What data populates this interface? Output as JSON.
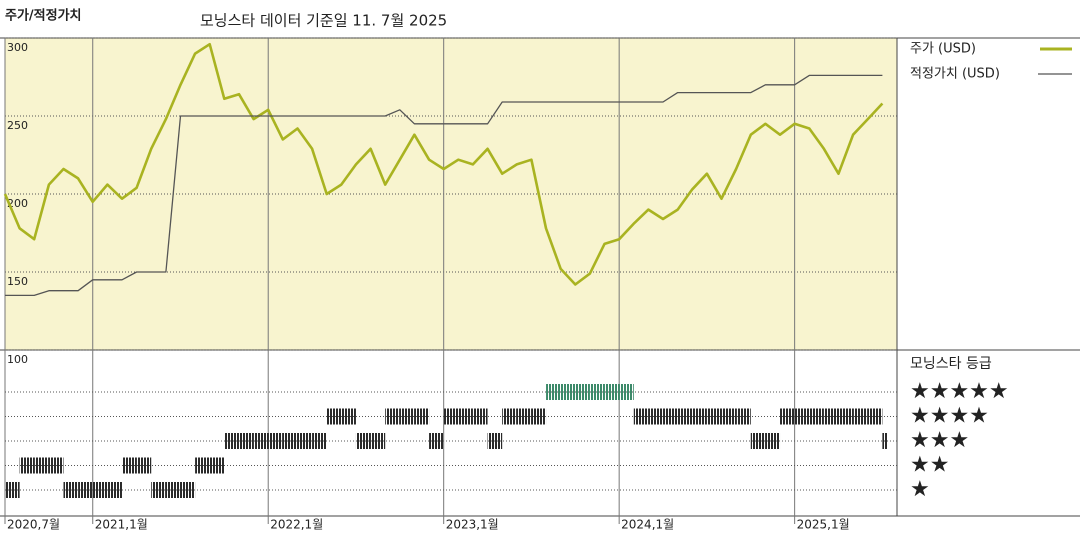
{
  "chart_data": {
    "type": "line",
    "title": "주가/적정가치",
    "subtitle": "모닝스타 데이터 기준일 11. 7월 2025",
    "x": [
      "2020-07",
      "2020-08",
      "2020-09",
      "2020-10",
      "2020-11",
      "2020-12",
      "2021-01",
      "2021-02",
      "2021-03",
      "2021-04",
      "2021-05",
      "2021-06",
      "2021-07",
      "2021-08",
      "2021-09",
      "2021-10",
      "2021-11",
      "2021-12",
      "2022-01",
      "2022-02",
      "2022-03",
      "2022-04",
      "2022-05",
      "2022-06",
      "2022-07",
      "2022-08",
      "2022-09",
      "2022-10",
      "2022-11",
      "2022-12",
      "2023-01",
      "2023-02",
      "2023-03",
      "2023-04",
      "2023-05",
      "2023-06",
      "2023-07",
      "2023-08",
      "2023-09",
      "2023-10",
      "2023-11",
      "2023-12",
      "2024-01",
      "2024-02",
      "2024-03",
      "2024-04",
      "2024-05",
      "2024-06",
      "2024-07",
      "2024-08",
      "2024-09",
      "2024-10",
      "2024-11",
      "2024-12",
      "2025-01",
      "2025-02",
      "2025-03",
      "2025-04",
      "2025-05",
      "2025-06",
      "2025-07"
    ],
    "series": [
      {
        "name": "주가 (USD)",
        "color": "#a9b321",
        "values": [
          200,
          178,
          171,
          206,
          216,
          210,
          195,
          206,
          197,
          204,
          229,
          248,
          270,
          290,
          296,
          261,
          264,
          248,
          254,
          235,
          242,
          229,
          200,
          206,
          219,
          229,
          206,
          222,
          238,
          222,
          216,
          222,
          219,
          229,
          213,
          219,
          222,
          178,
          152,
          142,
          149,
          168,
          171,
          181,
          190,
          184,
          190,
          203,
          213,
          197,
          216,
          238,
          245,
          238,
          245,
          242,
          229,
          213,
          238,
          248,
          258
        ]
      },
      {
        "name": "적정가치 (USD)",
        "color": "#555555",
        "values": [
          135,
          135,
          135,
          138,
          138,
          138,
          145,
          145,
          145,
          150,
          150,
          150,
          250,
          250,
          250,
          250,
          250,
          250,
          250,
          250,
          250,
          250,
          250,
          250,
          250,
          250,
          250,
          254,
          245,
          245,
          245,
          245,
          245,
          245,
          259,
          259,
          259,
          259,
          259,
          259,
          259,
          259,
          259,
          259,
          259,
          259,
          265,
          265,
          265,
          265,
          265,
          265,
          270,
          270,
          270,
          276,
          276,
          276,
          276,
          276,
          276
        ]
      }
    ],
    "xlim": [
      "2020-07",
      "2025-08"
    ],
    "xticks": [
      {
        "value": "2020-07",
        "label": "2020,7월"
      },
      {
        "value": "2021-01",
        "label": "2021,1월"
      },
      {
        "value": "2022-01",
        "label": "2022,1월"
      },
      {
        "value": "2023-01",
        "label": "2023,1월"
      },
      {
        "value": "2024-01",
        "label": "2024,1월"
      },
      {
        "value": "2025-01",
        "label": "2025,1월"
      }
    ],
    "ylim": [
      100,
      300
    ],
    "yticks": [
      100,
      150,
      200,
      250,
      300
    ],
    "grid": true,
    "background": "#f8f4cf",
    "rating": {
      "title": "모닝스타 등급",
      "labels": [
        "★",
        "★★",
        "★★★",
        "★★★★",
        "★★★★★"
      ],
      "color": "#2a2a2a",
      "highlight_color": "#3d8a6a",
      "values": [
        1,
        2,
        2,
        2,
        1,
        1,
        1,
        1,
        2,
        2,
        1,
        1,
        1,
        2,
        2,
        3,
        3,
        3,
        3,
        3,
        3,
        3,
        4,
        4,
        3,
        3,
        4,
        4,
        4,
        3,
        4,
        4,
        4,
        3,
        4,
        4,
        4,
        5,
        5,
        5,
        5,
        5,
        5,
        4,
        4,
        4,
        4,
        4,
        4,
        4,
        4,
        3,
        3,
        4,
        4,
        4,
        4,
        4,
        4,
        4,
        3
      ]
    }
  }
}
